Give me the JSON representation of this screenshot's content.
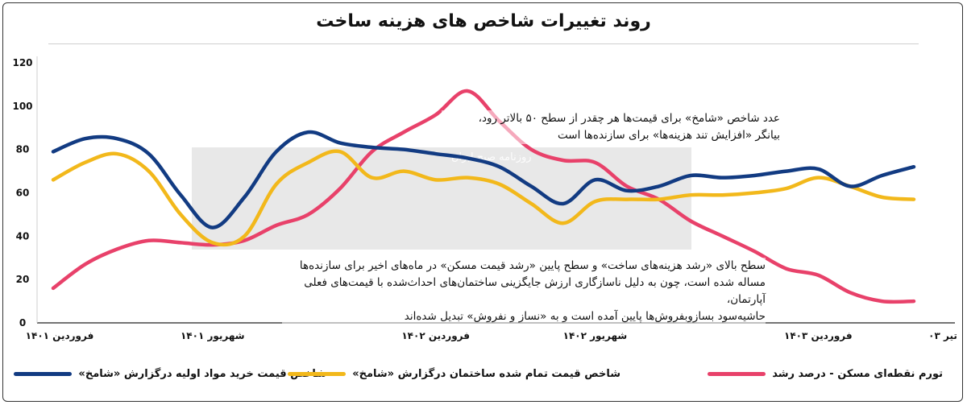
{
  "title": "روند تغییرات شاخص های هزینه ساخت",
  "watermark_text": "روزنامه صبح ایران",
  "annotations": {
    "top": [
      "عدد شاخص «شامخ» برای قیمت‌ها هر چقدر از سطح ۵۰ بالاتر رود،",
      "بیانگر «افزایش تند هزینه‌ها» برای سازنده‌ها است"
    ],
    "bottom": [
      "سطح بالای «رشد هزینه‌های ساخت» و سطح پایین «رشد قیمت مسکن» در ماه‌های اخیر برای سازنده‌ها",
      "مساله شده است، چون به دلیل ناسازگاری ارزش جایگزینی ساختمان‌های احداث‌شده با قیمت‌های فعلی آپارتمان،",
      "حاشیه‌سود بسازوبفروش‌ها پایین آمده است و به «نساز و نفروش» تبدیل شده‌اند"
    ]
  },
  "chart_data": {
    "type": "line",
    "title": "روند تغییرات شاخص های هزینه ساخت",
    "xlabel": "",
    "ylabel": "",
    "ylim": [
      0,
      120
    ],
    "yticks": [
      "0",
      "20",
      "40",
      "60",
      "80",
      "100",
      "120"
    ],
    "x_tick_labels": [
      {
        "i": 0,
        "label": "فروردین ۱۴۰۱"
      },
      {
        "i": 5,
        "label": "شهریور ۱۴۰۱"
      },
      {
        "i": 12,
        "label": "فروردین ۱۴۰۲"
      },
      {
        "i": 17,
        "label": "شهریور ۱۴۰۲"
      },
      {
        "i": 24,
        "label": "فروردین ۱۴۰۳"
      },
      {
        "i": 27,
        "label": "تیر ۰۳"
      }
    ],
    "n_points": 28,
    "grid": false,
    "legend_position": "bottom",
    "series": [
      {
        "name": "شاخص قیمت خرید مواد اولیه درگزارش «شامخ»",
        "color": "#123b82",
        "values": [
          79,
          85,
          85,
          78,
          59,
          44,
          58,
          79,
          88,
          83,
          81,
          80,
          78,
          76,
          72,
          63,
          55,
          66,
          61,
          63,
          68,
          67,
          68,
          70,
          71,
          63,
          68,
          72
        ]
      },
      {
        "name": "شاخص قیمت تمام شده ساختمان درگزارش «شامخ»",
        "color": "#f2b81b",
        "values": [
          66,
          74,
          78,
          70,
          50,
          37,
          40,
          64,
          74,
          79,
          67,
          70,
          66,
          67,
          64,
          55,
          46,
          56,
          57,
          57,
          59,
          59,
          60,
          62,
          67,
          63,
          58,
          57
        ]
      },
      {
        "name": "تورم نقطه‌ای مسکن - درصد رشد",
        "color": "#e8416a",
        "values": [
          16,
          27,
          34,
          38,
          37,
          36,
          38,
          45,
          50,
          62,
          79,
          88,
          96,
          107,
          93,
          80,
          75,
          74,
          63,
          57,
          47,
          40,
          33,
          25,
          22,
          14,
          10,
          10
        ]
      }
    ]
  }
}
